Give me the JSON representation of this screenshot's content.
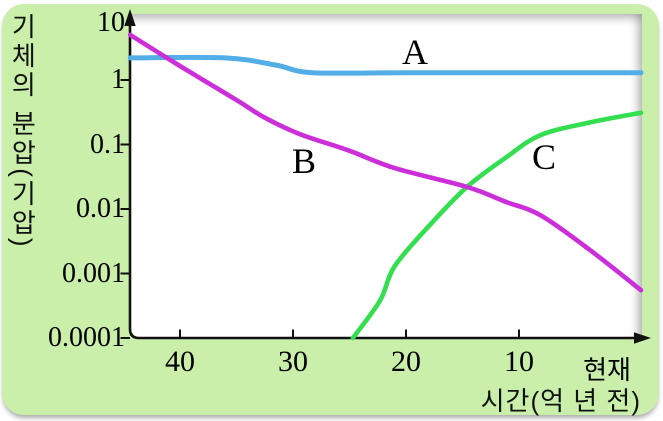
{
  "figure": {
    "card_color": "#c9efab",
    "plot_bg_color": "#ffffff",
    "axis_color": "#111111"
  },
  "y_axis": {
    "title": "기체의 분압(기압)",
    "scale": "log",
    "ticks": [
      "10",
      "1",
      "0.1",
      "0.01",
      "0.001",
      "0.0001"
    ]
  },
  "x_axis": {
    "title": "시간(억 년 전)",
    "ticks": [
      "40",
      "30",
      "20",
      "10",
      "현재"
    ]
  },
  "chart_data": {
    "type": "line",
    "title": "",
    "xlabel": "시간(억 년 전)",
    "ylabel": "기체의 분압(기압)",
    "y_scale": "log",
    "ylim": [
      0.0001,
      10
    ],
    "x_direction": "past (45억 년 전) at left, 현재 (0) at right",
    "xticks": [
      40,
      30,
      20,
      10,
      0
    ],
    "grid": false,
    "legend_position": "labels beside curves",
    "series": [
      {
        "name": "A",
        "color": "#53ade7",
        "points_t_value": [
          [
            44.4,
            2.2
          ],
          [
            36,
            2.2
          ],
          [
            31.5,
            1.7
          ],
          [
            28.3,
            1.3
          ],
          [
            20,
            1.3
          ],
          [
            10,
            1.3
          ],
          [
            -0.8,
            1.3
          ]
        ]
      },
      {
        "name": "B",
        "color": "#cc2fd9",
        "points_t_value": [
          [
            44.4,
            5.0
          ],
          [
            40,
            1.65
          ],
          [
            35,
            0.49
          ],
          [
            32.5,
            0.26
          ],
          [
            29.4,
            0.145
          ],
          [
            25,
            0.08
          ],
          [
            21,
            0.043
          ],
          [
            14.6,
            0.022
          ],
          [
            11.2,
            0.013
          ],
          [
            8.1,
            0.008
          ],
          [
            3.7,
            0.0023
          ],
          [
            -0.8,
            0.00055
          ]
        ]
      },
      {
        "name": "C",
        "color": "#33df4f",
        "points_t_value": [
          [
            24.7,
            0.0001
          ],
          [
            22.3,
            0.00038
          ],
          [
            21,
            0.0013
          ],
          [
            17.9,
            0.0056
          ],
          [
            14.6,
            0.022
          ],
          [
            11.2,
            0.062
          ],
          [
            8.1,
            0.14
          ],
          [
            3.7,
            0.22
          ],
          [
            -0.8,
            0.31
          ]
        ]
      }
    ],
    "notable": {
      "B_C_crossing": {
        "t": 14.6,
        "value": 0.022
      }
    }
  }
}
